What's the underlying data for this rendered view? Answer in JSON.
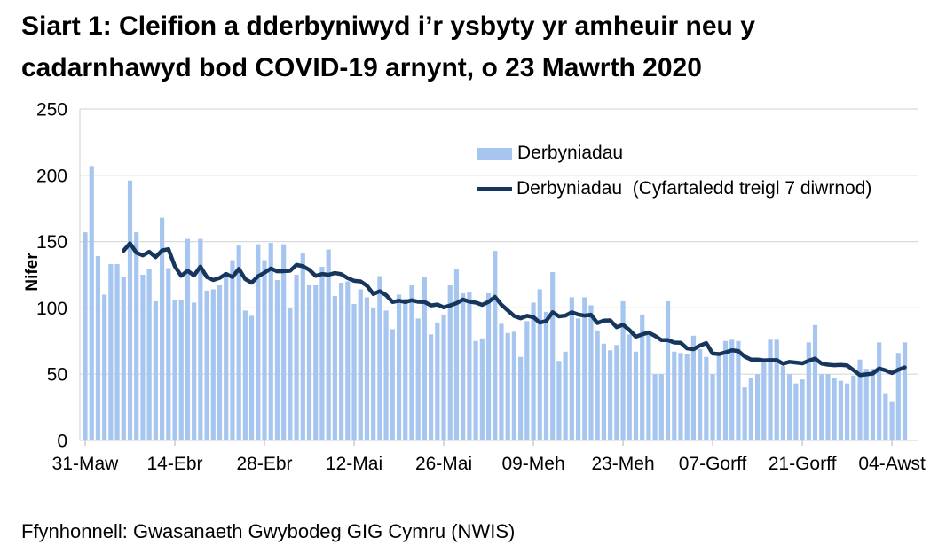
{
  "title": {
    "line1": "Siart 1: Cleifion a dderbyniwyd i’r ysbyty yr amheuir neu y",
    "line2": "cadarnhawyd bod COVID-19 arnynt, o 23 Mawrth 2020",
    "full": "Siart 1: Cleifion a dderbyniwyd i’r ysbyty yr amheuir neu y cadarnhawyd bod COVID-19 arnynt, o 23 Mawrth 2020"
  },
  "footer": "Ffynhonnell: Gwasanaeth Gwybodeg GIG Cymru (NWIS)",
  "colors": {
    "bar": "#A7C6EF",
    "line": "#17365D",
    "grid": "#D9D9D9",
    "tick": "#BFBFBF",
    "text": "#000000"
  },
  "chart_data": {
    "type": "bar",
    "title": "Siart 1: Cleifion a dderbyniwyd i’r ysbyty yr amheuir neu y cadarnhawyd bod COVID-19 arnynt, o 23 Mawrth 2020",
    "xlabel": "",
    "ylabel": "Nifer",
    "ylim": [
      0,
      250
    ],
    "y_ticks": [
      0,
      50,
      100,
      150,
      200,
      250
    ],
    "x_tick_labels": [
      "31-Maw",
      "14-Ebr",
      "28-Ebr",
      "12-Mai",
      "26-Mai",
      "09-Meh",
      "23-Meh",
      "07-Gorff",
      "21-Gorff",
      "04-Awst"
    ],
    "x_tick_interval_days": 14,
    "x_start_label": "31-Maw",
    "frequency": "daily",
    "grid": "horizontal",
    "legend_position": "top-right-inside",
    "series": [
      {
        "name": "Derbyniadau",
        "type": "bar",
        "values": [
          157,
          207,
          139,
          110,
          133,
          133,
          123,
          196,
          157,
          125,
          129,
          105,
          168,
          130,
          106,
          106,
          152,
          104,
          152,
          113,
          114,
          117,
          127,
          136,
          147,
          98,
          94,
          148,
          136,
          149,
          121,
          148,
          100,
          125,
          141,
          117,
          117,
          131,
          144,
          109,
          119,
          120,
          103,
          114,
          108,
          100,
          124,
          98,
          84,
          110,
          107,
          117,
          92,
          123,
          80,
          89,
          95,
          117,
          129,
          111,
          112,
          75,
          77,
          111,
          143,
          88,
          81,
          82,
          63,
          90,
          104,
          114,
          97,
          127,
          60,
          67,
          108,
          92,
          108,
          102,
          83,
          73,
          68,
          72,
          105,
          80,
          67,
          95,
          83,
          50,
          50,
          105,
          67,
          66,
          65,
          79,
          69,
          63,
          50,
          64,
          75,
          76,
          75,
          40,
          47,
          50,
          60,
          76,
          76,
          56,
          50,
          43,
          46,
          74,
          87,
          50,
          50,
          47,
          45,
          43,
          49,
          61,
          54,
          54,
          74,
          35,
          29,
          66,
          74
        ]
      },
      {
        "name": "Derbyniadau  (Cyfartaledd treigl 7 diwrnod)",
        "type": "line",
        "derived_from": "Derbyniadau",
        "rolling_window": 7
      }
    ]
  }
}
